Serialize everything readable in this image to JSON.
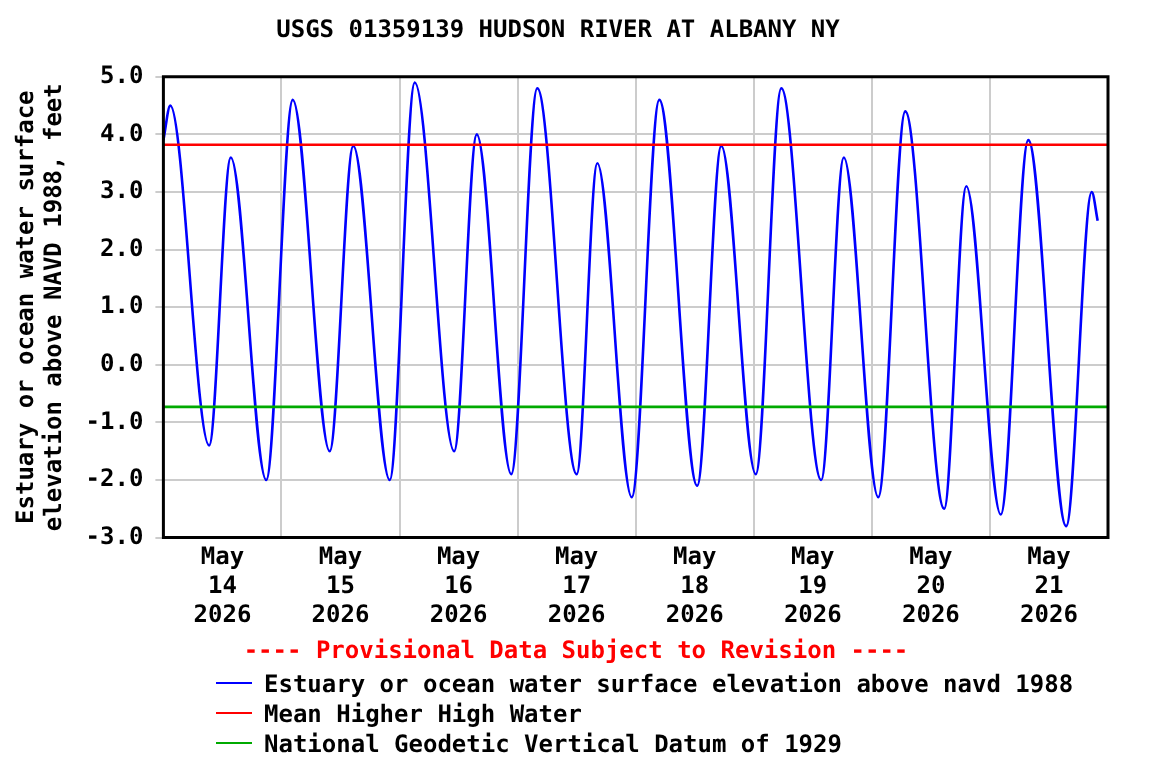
{
  "chart_data": {
    "type": "line",
    "title": "USGS 01359139 HUDSON RIVER AT ALBANY NY",
    "ylabel": "Estuary or ocean water surface elevation above NAVD 1988, feet",
    "annotations": [
      "---- Provisional Data Subject to Revision ----"
    ],
    "x": [
      "2026-05-14T00:00",
      "2026-05-14T01:24",
      "2026-05-14T09:18",
      "2026-05-14T13:42",
      "2026-05-14T20:54",
      "2026-05-15T02:18",
      "2026-05-15T09:48",
      "2026-05-15T14:36",
      "2026-05-15T22:00",
      "2026-05-16T03:06",
      "2026-05-16T11:06",
      "2026-05-16T15:42",
      "2026-05-16T22:42",
      "2026-05-17T04:00",
      "2026-05-17T12:00",
      "2026-05-17T16:12",
      "2026-05-17T23:12",
      "2026-05-18T04:48",
      "2026-05-18T12:30",
      "2026-05-18T17:24",
      "2026-05-19T00:24",
      "2026-05-19T05:36",
      "2026-05-19T13:42",
      "2026-05-19T18:18",
      "2026-05-20T01:18",
      "2026-05-20T06:48",
      "2026-05-20T14:42",
      "2026-05-20T19:12",
      "2026-05-21T02:12",
      "2026-05-21T07:48",
      "2026-05-21T15:30",
      "2026-05-21T20:42",
      "2026-05-21T21:54"
    ],
    "series": [
      {
        "name": "Estuary or ocean water surface elevation above navd 1988",
        "color": "#0000ff",
        "values": [
          3.9,
          4.5,
          -1.4,
          3.6,
          -2.0,
          4.6,
          -1.5,
          3.8,
          -2.0,
          4.9,
          -1.5,
          4.0,
          -1.9,
          4.8,
          -1.9,
          3.5,
          -2.3,
          4.6,
          -2.1,
          3.8,
          -1.9,
          4.8,
          -2.0,
          3.6,
          -2.3,
          4.4,
          -2.5,
          3.1,
          -2.6,
          3.9,
          -2.8,
          3.0,
          2.5
        ]
      }
    ],
    "ref_lines": [
      {
        "axis": "y",
        "value": 3.82,
        "label": "Mean Higher High Water",
        "color": "#ff0000"
      },
      {
        "axis": "y",
        "value": -0.73,
        "label": "National Geodetic Vertical Datum of 1929",
        "color": "#00aa00"
      }
    ],
    "xlim": [
      "2026-05-14T00:00",
      "2026-05-22T00:00"
    ],
    "xticks": [
      {
        "value": "2026-05-14T12:00",
        "label": "May 14 2026"
      },
      {
        "value": "2026-05-15T00:00",
        "label": null
      },
      {
        "value": "2026-05-15T12:00",
        "label": "May 15 2026"
      },
      {
        "value": "2026-05-16T00:00",
        "label": null
      },
      {
        "value": "2026-05-16T12:00",
        "label": "May 16 2026"
      },
      {
        "value": "2026-05-17T00:00",
        "label": null
      },
      {
        "value": "2026-05-17T12:00",
        "label": "May 17 2026"
      },
      {
        "value": "2026-05-18T00:00",
        "label": null
      },
      {
        "value": "2026-05-18T12:00",
        "label": "May 18 2026"
      },
      {
        "value": "2026-05-19T00:00",
        "label": null
      },
      {
        "value": "2026-05-19T12:00",
        "label": "May 19 2026"
      },
      {
        "value": "2026-05-20T00:00",
        "label": null
      },
      {
        "value": "2026-05-20T12:00",
        "label": "May 20 2026"
      },
      {
        "value": "2026-05-21T00:00",
        "label": null
      },
      {
        "value": "2026-05-21T12:00",
        "label": "May 21 2026"
      }
    ],
    "ylim": [
      -3.0,
      5.0
    ],
    "yticks": [
      {
        "value": -3,
        "label": "-3.0"
      },
      {
        "value": -2,
        "label": "-2.0"
      },
      {
        "value": -1,
        "label": "-1.0"
      },
      {
        "value": 0,
        "label": "0.0"
      },
      {
        "value": 1,
        "label": "1.0"
      },
      {
        "value": 2,
        "label": "2.0"
      },
      {
        "value": 3,
        "label": "3.0"
      },
      {
        "value": 4,
        "label": "4.0"
      },
      {
        "value": 5,
        "label": "5.0"
      }
    ],
    "grid": true,
    "legend": "bottom",
    "marker": "none",
    "line_style": "solid"
  }
}
